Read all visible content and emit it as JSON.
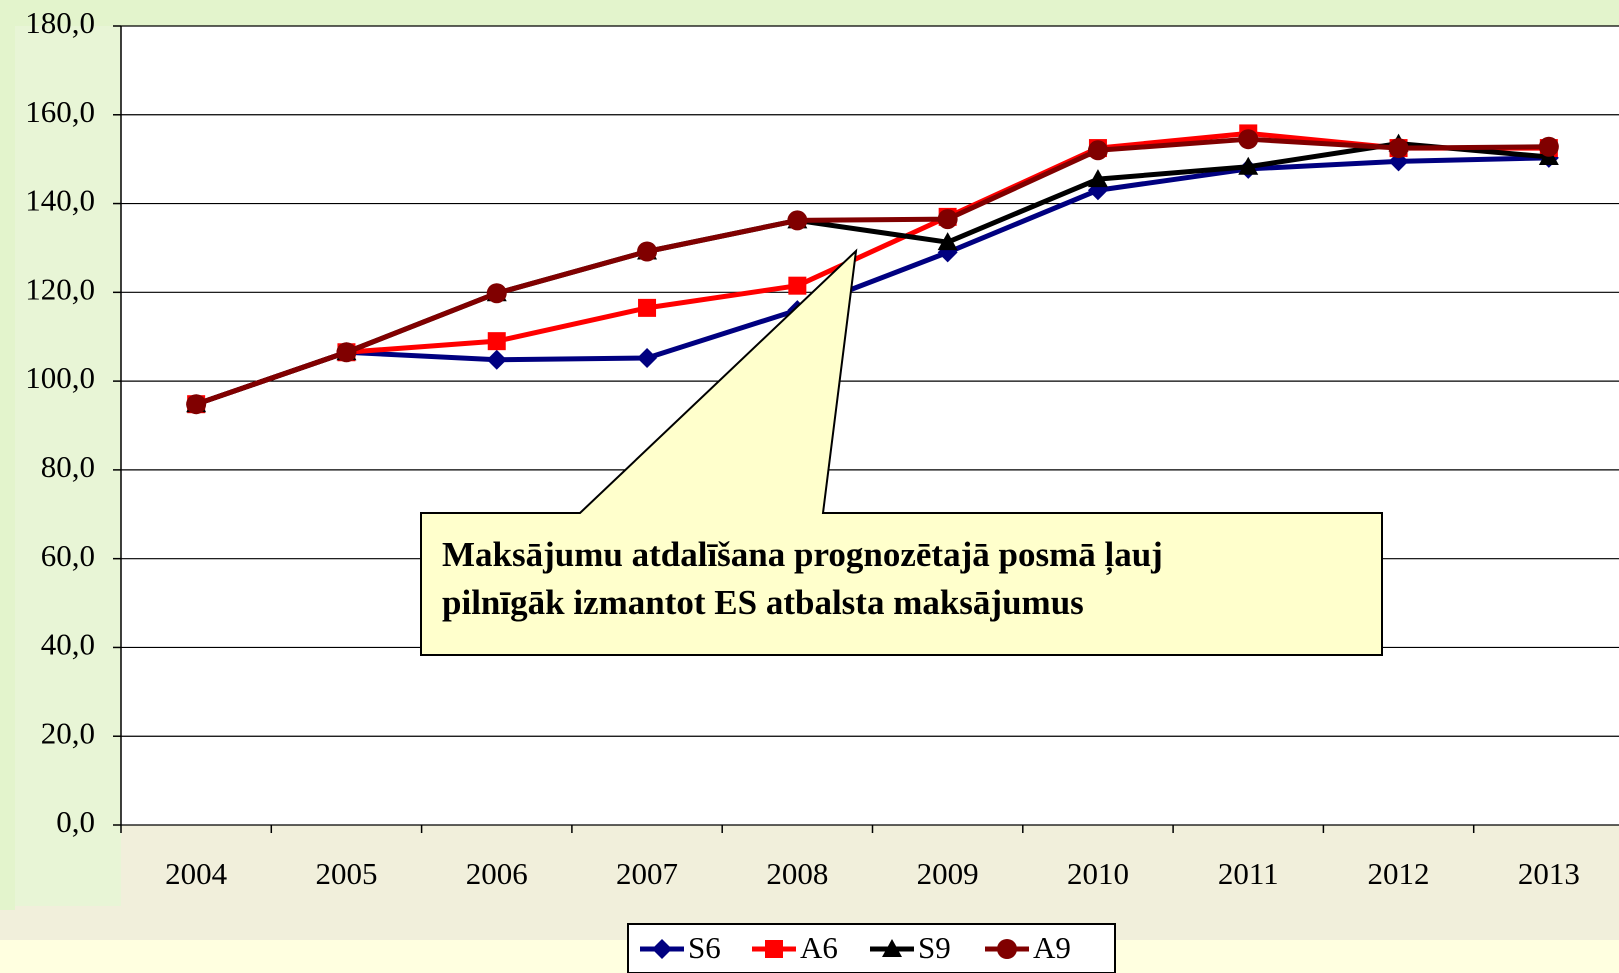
{
  "chart_data": {
    "type": "line",
    "categories": [
      "2004",
      "2005",
      "2006",
      "2007",
      "2008",
      "2009",
      "2010",
      "2011",
      "2012",
      "2013"
    ],
    "series": [
      {
        "name": "S6",
        "color": "#000080",
        "marker": "diamond",
        "values": [
          94.8,
          106.5,
          104.8,
          105.2,
          116,
          129,
          143,
          147.8,
          149.5,
          150.3
        ]
      },
      {
        "name": "A6",
        "color": "#ff0000",
        "marker": "square",
        "values": [
          94.8,
          106.5,
          109,
          116.5,
          121.5,
          137,
          152.5,
          155.8,
          152.5,
          152.5
        ]
      },
      {
        "name": "S9",
        "color": "#000000",
        "marker": "triangle",
        "values": [
          94.8,
          106.5,
          119.8,
          129.2,
          136.2,
          131.3,
          145.5,
          148.3,
          153.5,
          150.5
        ]
      },
      {
        "name": "A9",
        "color": "#800000",
        "marker": "circle",
        "values": [
          94.8,
          106.5,
          119.8,
          129.2,
          136.2,
          136.5,
          152,
          154.5,
          152.5,
          152.8
        ]
      }
    ],
    "ylim": [
      0,
      180
    ],
    "yticks": [
      {
        "value": 0,
        "label": "0,0"
      },
      {
        "value": 20,
        "label": "20,0"
      },
      {
        "value": 40,
        "label": "40,0"
      },
      {
        "value": 60,
        "label": "60,0"
      },
      {
        "value": 80,
        "label": "80,0"
      },
      {
        "value": 100,
        "label": "100,0"
      },
      {
        "value": 120,
        "label": "120,0"
      },
      {
        "value": 140,
        "label": "140,0"
      },
      {
        "value": 160,
        "label": "160,0"
      },
      {
        "value": 180,
        "label": "180,0"
      }
    ],
    "grid": true,
    "legend": "bottom",
    "annotation": [
      "Maksājumu atdalīšana prognozētajā posmā ļauj",
      "pilnīgāk izmantot ES atbalsta maksājumus"
    ]
  }
}
